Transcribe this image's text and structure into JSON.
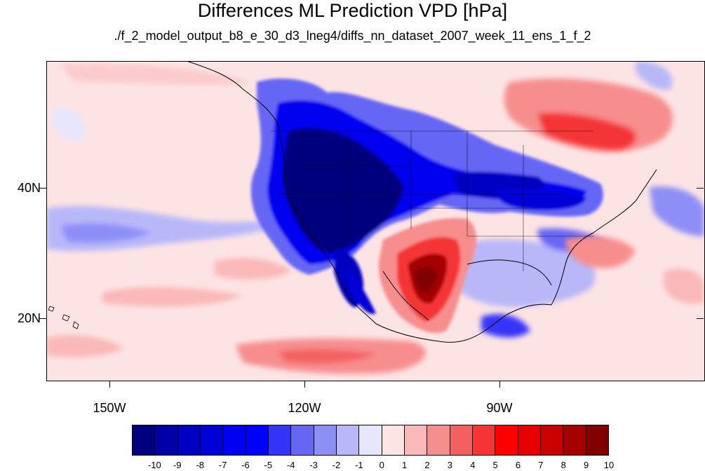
{
  "title": "Differences ML Prediction VPD [hPa]",
  "subtitle": "./f_2_model_output_b8_e_30_d3_lneg4/diffs_nn_dataset_2007_week_11_ens_1_f_2",
  "map": {
    "projection": "cylindrical-equidistant",
    "lon_range": [
      -160,
      -61
    ],
    "lat_range": [
      11,
      60
    ],
    "background_color": "#fde4e4",
    "ocean_anomaly_description": "mostly slightly positive"
  },
  "axes": {
    "lat_labels": [
      "40N",
      "20N"
    ],
    "lon_labels": [
      "150W",
      "120W",
      "90W"
    ]
  },
  "colorbar": {
    "labels": [
      "-10",
      "-9",
      "-8",
      "-7",
      "-6",
      "-5",
      "-4",
      "-3",
      "-2",
      "-1",
      "0",
      "1",
      "2",
      "3",
      "4",
      "5",
      "6",
      "7",
      "8",
      "9",
      "10"
    ],
    "colors": [
      "#00007f",
      "#0000a8",
      "#0000c2",
      "#0000d9",
      "#0000f0",
      "#0000ff",
      "#3535fa",
      "#6666f5",
      "#8e8ef7",
      "#b8b8f9",
      "#e6e6fc",
      "#fde4e4",
      "#fbb8b8",
      "#f78e8e",
      "#f46060",
      "#f53535",
      "#fd0000",
      "#e60000",
      "#c80000",
      "#a50000",
      "#800000"
    ]
  }
}
